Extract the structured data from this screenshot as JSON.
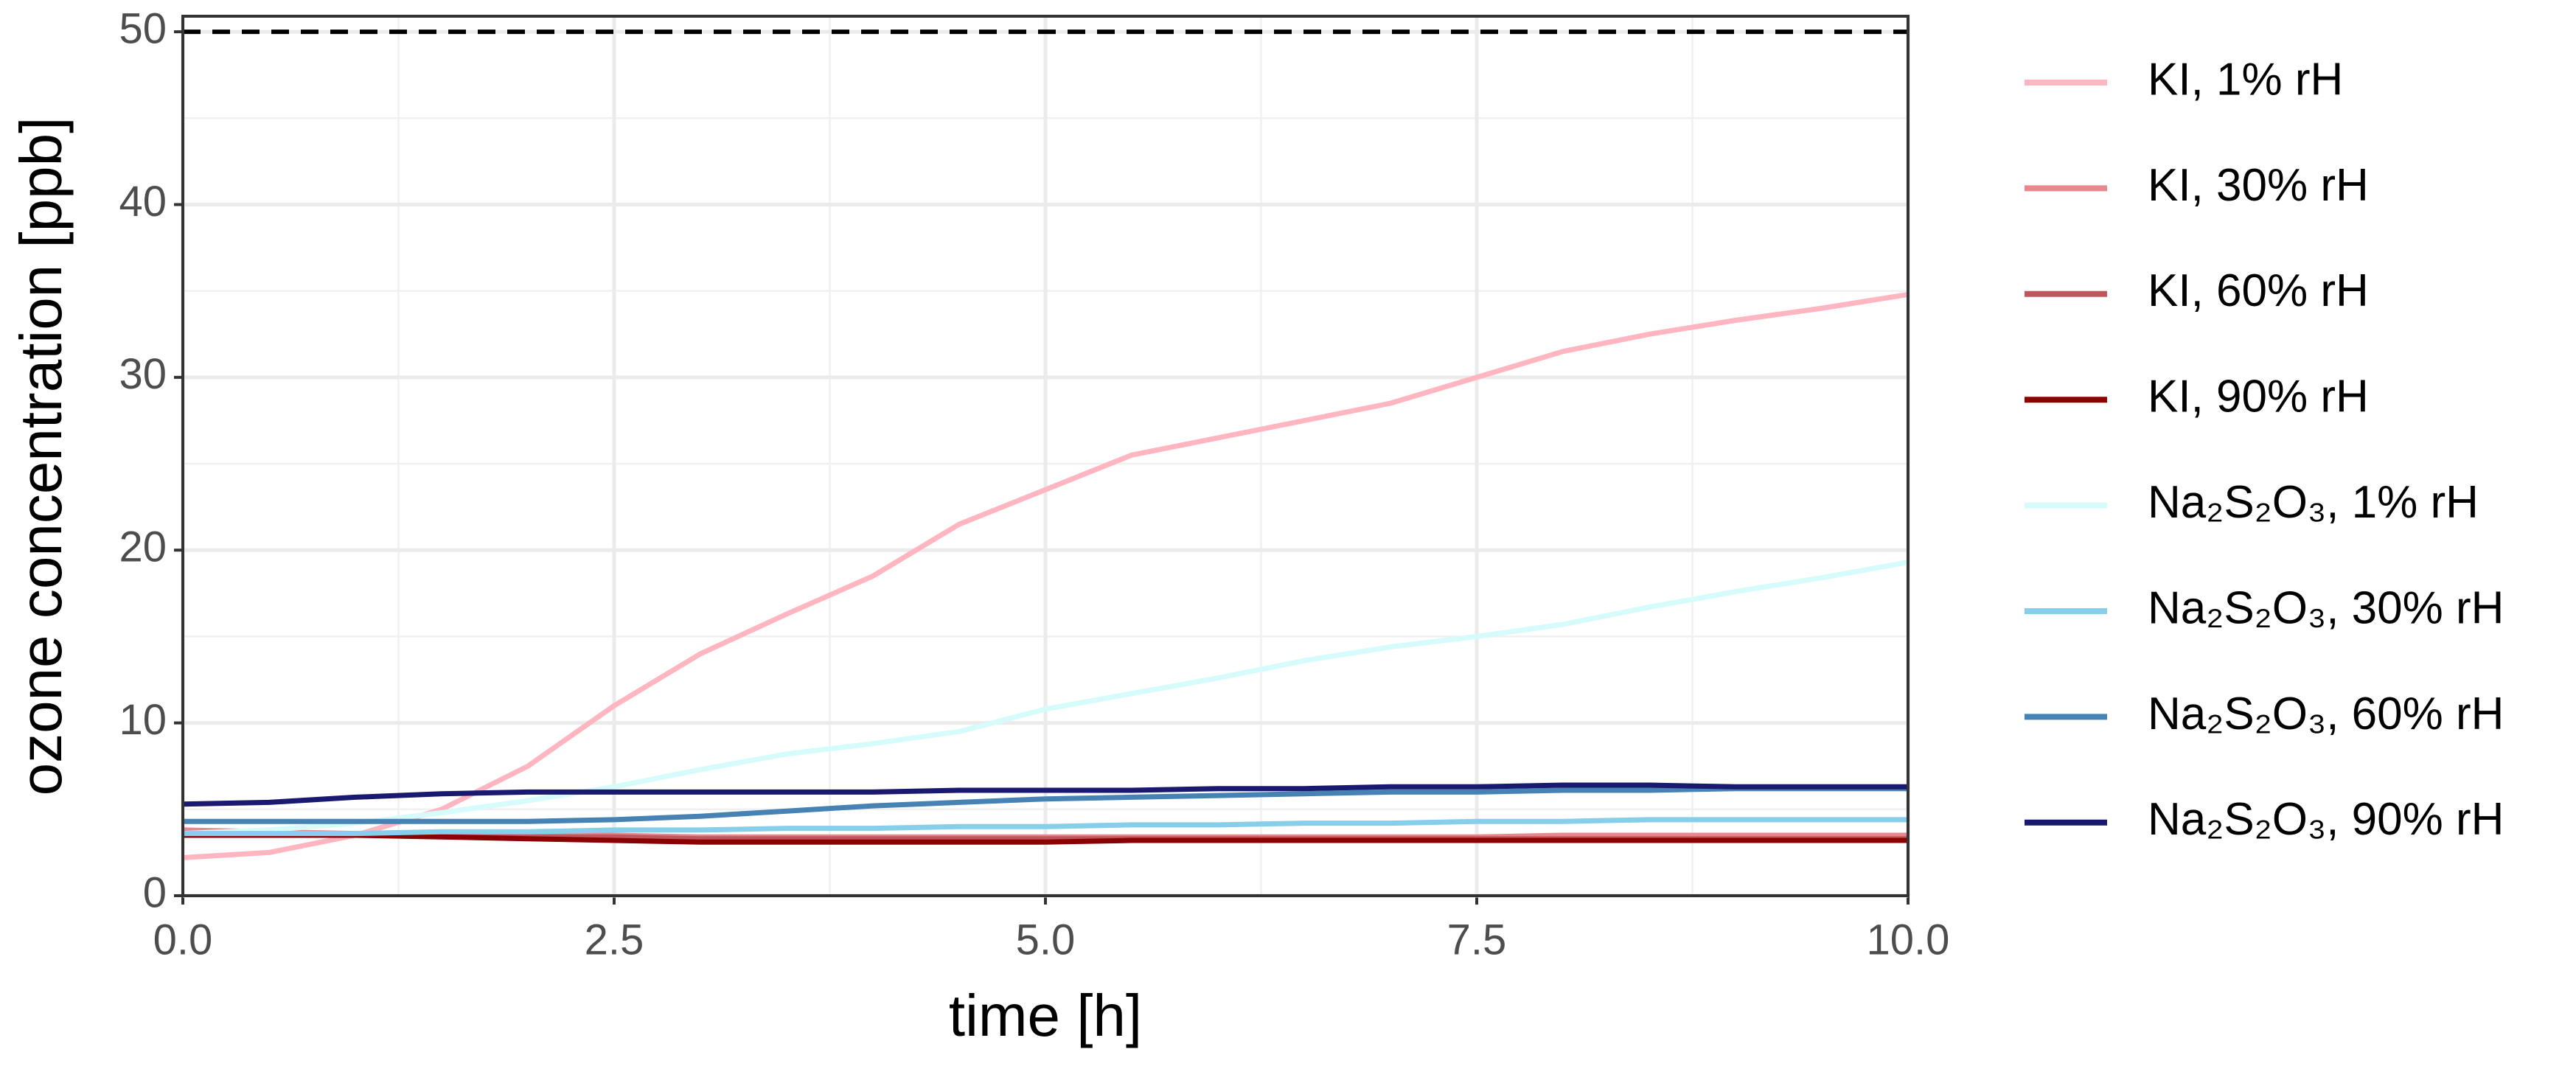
{
  "chart_data": {
    "type": "line",
    "xlabel": "time [h]",
    "ylabel": "ozone concentration [ppb]",
    "x": [
      0,
      0.5,
      1,
      1.5,
      2,
      2.5,
      3,
      3.5,
      4,
      4.5,
      5,
      5.5,
      6,
      6.5,
      7,
      7.5,
      8,
      8.5,
      9,
      9.5,
      10
    ],
    "series": [
      {
        "name": "KI, 1% rH",
        "color": "#ffb6c1",
        "values": [
          2.2,
          2.5,
          3.5,
          5,
          7.5,
          11,
          14,
          16.3,
          18.5,
          21.5,
          23.5,
          25.5,
          26.5,
          27.5,
          28.5,
          30,
          31.5,
          32.5,
          33.3,
          34,
          34.8
        ]
      },
      {
        "name": "KI, 30% rH",
        "color": "#e8888e",
        "values": [
          3.8,
          3.7,
          3.6,
          3.6,
          3.5,
          3.5,
          3.4,
          3.4,
          3.4,
          3.4,
          3.4,
          3.4,
          3.4,
          3.4,
          3.4,
          3.4,
          3.5,
          3.5,
          3.5,
          3.5,
          3.5
        ]
      },
      {
        "name": "KI, 60% rH",
        "color": "#c0575f",
        "values": [
          3.6,
          3.6,
          3.5,
          3.5,
          3.4,
          3.4,
          3.3,
          3.3,
          3.3,
          3.3,
          3.3,
          3.3,
          3.3,
          3.3,
          3.3,
          3.3,
          3.3,
          3.3,
          3.3,
          3.3,
          3.3
        ]
      },
      {
        "name": "KI, 90% rH",
        "color": "#8b0000",
        "values": [
          3.5,
          3.5,
          3.5,
          3.4,
          3.3,
          3.2,
          3.1,
          3.1,
          3.1,
          3.1,
          3.1,
          3.2,
          3.2,
          3.2,
          3.2,
          3.2,
          3.2,
          3.2,
          3.2,
          3.2,
          3.2
        ]
      },
      {
        "name": "Na₂S₂O₃, 1% rH",
        "color": "#d6fbfb",
        "values": [
          3.6,
          3.8,
          4.2,
          4.8,
          5.5,
          6.3,
          7.3,
          8.2,
          8.8,
          9.5,
          10.8,
          11.7,
          12.6,
          13.6,
          14.4,
          15,
          15.7,
          16.7,
          17.6,
          18.4,
          19.3
        ]
      },
      {
        "name": "Na₂S₂O₃, 30% rH",
        "color": "#87ceeb",
        "values": [
          3.6,
          3.6,
          3.6,
          3.7,
          3.7,
          3.8,
          3.8,
          3.9,
          3.9,
          4.0,
          4.0,
          4.1,
          4.1,
          4.2,
          4.2,
          4.3,
          4.3,
          4.4,
          4.4,
          4.4,
          4.4
        ]
      },
      {
        "name": "Na₂S₂O₃, 60% rH",
        "color": "#4682b4",
        "values": [
          4.3,
          4.3,
          4.3,
          4.3,
          4.3,
          4.4,
          4.6,
          4.9,
          5.2,
          5.4,
          5.6,
          5.7,
          5.8,
          5.9,
          6.0,
          6.0,
          6.1,
          6.1,
          6.2,
          6.2,
          6.2
        ]
      },
      {
        "name": "Na₂S₂O₃, 90% rH",
        "color": "#191970",
        "values": [
          5.3,
          5.4,
          5.7,
          5.9,
          6.0,
          6.0,
          6.0,
          6.0,
          6.0,
          6.1,
          6.1,
          6.1,
          6.2,
          6.2,
          6.3,
          6.3,
          6.4,
          6.4,
          6.3,
          6.3,
          6.3
        ]
      }
    ],
    "reference_line": 50,
    "xlim": [
      0,
      10
    ],
    "ylim": [
      0,
      50.9
    ],
    "xticks": [
      {
        "value": 0,
        "label": "0.0"
      },
      {
        "value": 2.5,
        "label": "2.5"
      },
      {
        "value": 5,
        "label": "5.0"
      },
      {
        "value": 7.5,
        "label": "7.5"
      },
      {
        "value": 10,
        "label": "10.0"
      }
    ],
    "yticks": [
      0,
      10,
      20,
      30,
      40,
      50
    ],
    "grid": true,
    "legend": "right"
  }
}
